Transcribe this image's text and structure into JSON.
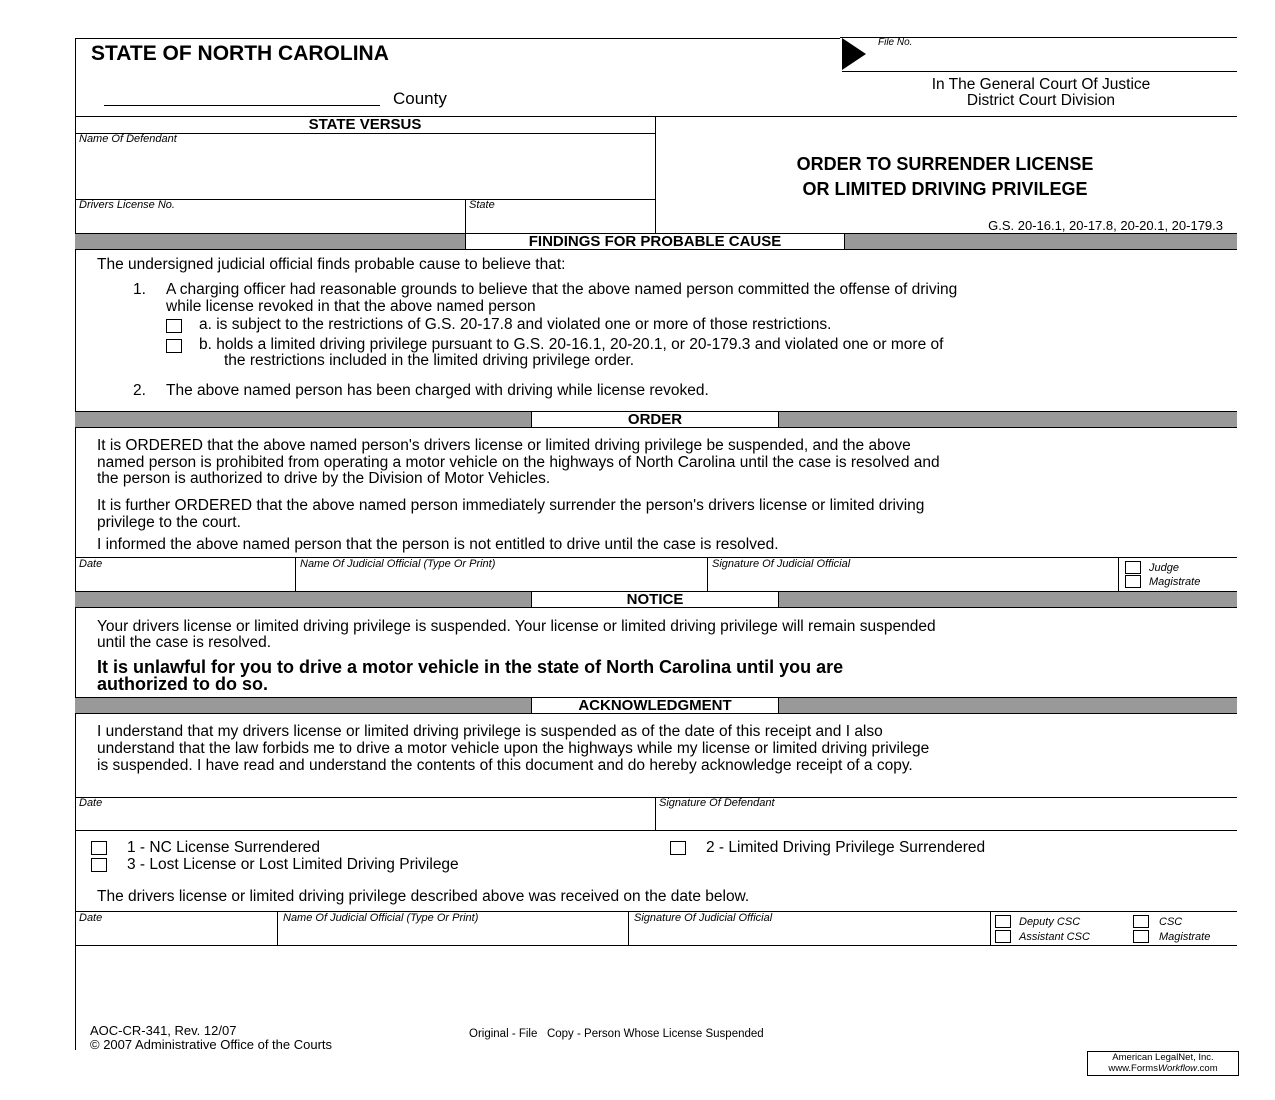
{
  "header": {
    "state": "STATE OF NORTH CAROLINA",
    "county_label": "County",
    "file_no_label": "File No.",
    "court": "In The General Court Of Justice",
    "division": "District Court Division"
  },
  "parties": {
    "state_versus": "STATE VERSUS",
    "name_of_defendant": "Name Of Defendant",
    "drivers_license_no": "Drivers License No.",
    "state": "State"
  },
  "title": {
    "line1": "ORDER TO SURRENDER LICENSE",
    "line2": "OR LIMITED DRIVING PRIVILEGE",
    "statutes": "G.S. 20-16.1, 20-17.8, 20-20.1, 20-179.3"
  },
  "findings": {
    "heading": "FINDINGS FOR PROBABLE CAUSE",
    "intro": "The undersigned judicial official finds probable cause to believe that:",
    "item1_num": "1.",
    "item1_l1": "A charging officer had reasonable grounds to believe that the above named person committed the offense of driving",
    "item1_l2": "while license revoked in that the above named person",
    "a": "a. is subject to the restrictions of G.S. 20-17.8 and violated one or more of those restrictions.",
    "b_l1": "b. holds a limited driving privilege pursuant to G.S. 20-16.1, 20-20.1, or 20-179.3 and violated one or more of",
    "b_l2": "the restrictions included in the limited driving privilege order.",
    "item2_num": "2.",
    "item2": "The above named person has been charged with driving while license revoked."
  },
  "order": {
    "heading": "ORDER",
    "p1_l1": "It is ORDERED that the above named person's drivers license or limited driving privilege be suspended, and the above",
    "p1_l2": "named person is prohibited from operating a motor vehicle on the highways of North Carolina until the case is resolved and",
    "p1_l3": "the person is authorized to drive by the Division of Motor Vehicles.",
    "p2_l1": "It is further ORDERED that the above named person immediately surrender the person's drivers license or limited driving",
    "p2_l2": "privilege to the court.",
    "p3": "I informed the above named person that the person is not entitled to drive until the case is resolved.",
    "date": "Date",
    "name_official": "Name Of Judicial Official (Type Or Print)",
    "signature_official": "Signature Of Judicial Official",
    "judge": "Judge",
    "magistrate": "Magistrate"
  },
  "notice": {
    "heading": "NOTICE",
    "p1_l1": "Your drivers license or limited driving privilege is suspended. Your license or limited driving privilege will remain suspended",
    "p1_l2": "until the case is resolved.",
    "bold_l1": "It is unlawful for you to drive a motor vehicle in the state of North Carolina until you are",
    "bold_l2": "authorized to do so."
  },
  "ack": {
    "heading": "ACKNOWLEDGMENT",
    "l1": "I understand that my drivers license or limited driving privilege is suspended as of the date of this receipt and I also",
    "l2": "understand that the law forbids me to drive a motor vehicle upon the highways while my license or limited driving privilege",
    "l3": "is suspended. I have read and understand the contents of this document and do hereby acknowledge receipt of a copy.",
    "date": "Date",
    "signature_defendant": "Signature Of Defendant"
  },
  "surrender": {
    "opt1": "1 - NC License Surrendered",
    "opt2": "2 - Limited Driving Privilege Surrendered",
    "opt3": "3 - Lost License or Lost Limited Driving Privilege",
    "received": "The drivers license or limited driving privilege described above was received on the date below.",
    "date": "Date",
    "name_official": "Name Of Judicial Official (Type Or Print)",
    "signature_official": "Signature Of Judicial Official",
    "deputy_csc": "Deputy CSC",
    "csc": "CSC",
    "assistant_csc": "Assistant CSC",
    "magistrate": "Magistrate"
  },
  "footer": {
    "form_no": "AOC-CR-341, Rev. 12/07",
    "copyright": "© 2007 Administrative Office of the Courts",
    "distribution": "Original - File   Copy - Person Whose License Suspended",
    "vendor_l1": "American LegalNet, Inc.",
    "vendor_l2_a": "www.Forms",
    "vendor_l2_b": "Workflow",
    ".com": ".com",
    "vendor_l2_c": ".com"
  }
}
